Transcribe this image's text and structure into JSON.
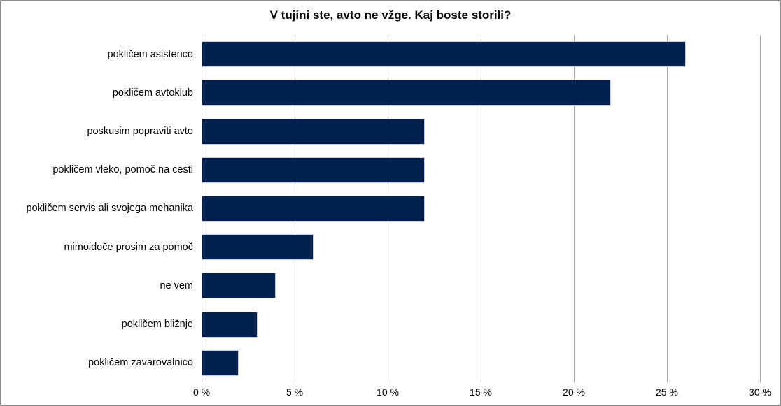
{
  "chart_data": {
    "type": "bar",
    "orientation": "horizontal",
    "title": "V tujini ste, avto ne vžge. Kaj boste storili?",
    "categories": [
      "pokličem asistenco",
      "pokličem avtoklub",
      "poskusim popraviti avto",
      "pokličem vleko, pomoč na cesti",
      "pokličem servis ali svojega mehanika",
      "mimoidoče prosim za pomoč",
      "ne vem",
      "pokličem bližnje",
      "pokličem zavarovalnico"
    ],
    "values": [
      26,
      22,
      12,
      12,
      12,
      6,
      4,
      3,
      2
    ],
    "unit": "%",
    "xlim": [
      0,
      30
    ],
    "x_ticks": [
      {
        "value": 0,
        "label": "0 %"
      },
      {
        "value": 5,
        "label": "5 %"
      },
      {
        "value": 10,
        "label": "10 %"
      },
      {
        "value": 15,
        "label": "15 %"
      },
      {
        "value": 20,
        "label": "20 %"
      },
      {
        "value": 25,
        "label": "25 %"
      },
      {
        "value": 30,
        "label": "30 %"
      }
    ],
    "grid": "vertical",
    "legend": "none",
    "colors": {
      "bar_fill": "#02214E",
      "bar_border": "#C6CFDF",
      "gridline": "#ACACAC",
      "axis_text": "#000000",
      "frame_border": "#8A8A8A",
      "background": "#FFFFFF"
    }
  }
}
